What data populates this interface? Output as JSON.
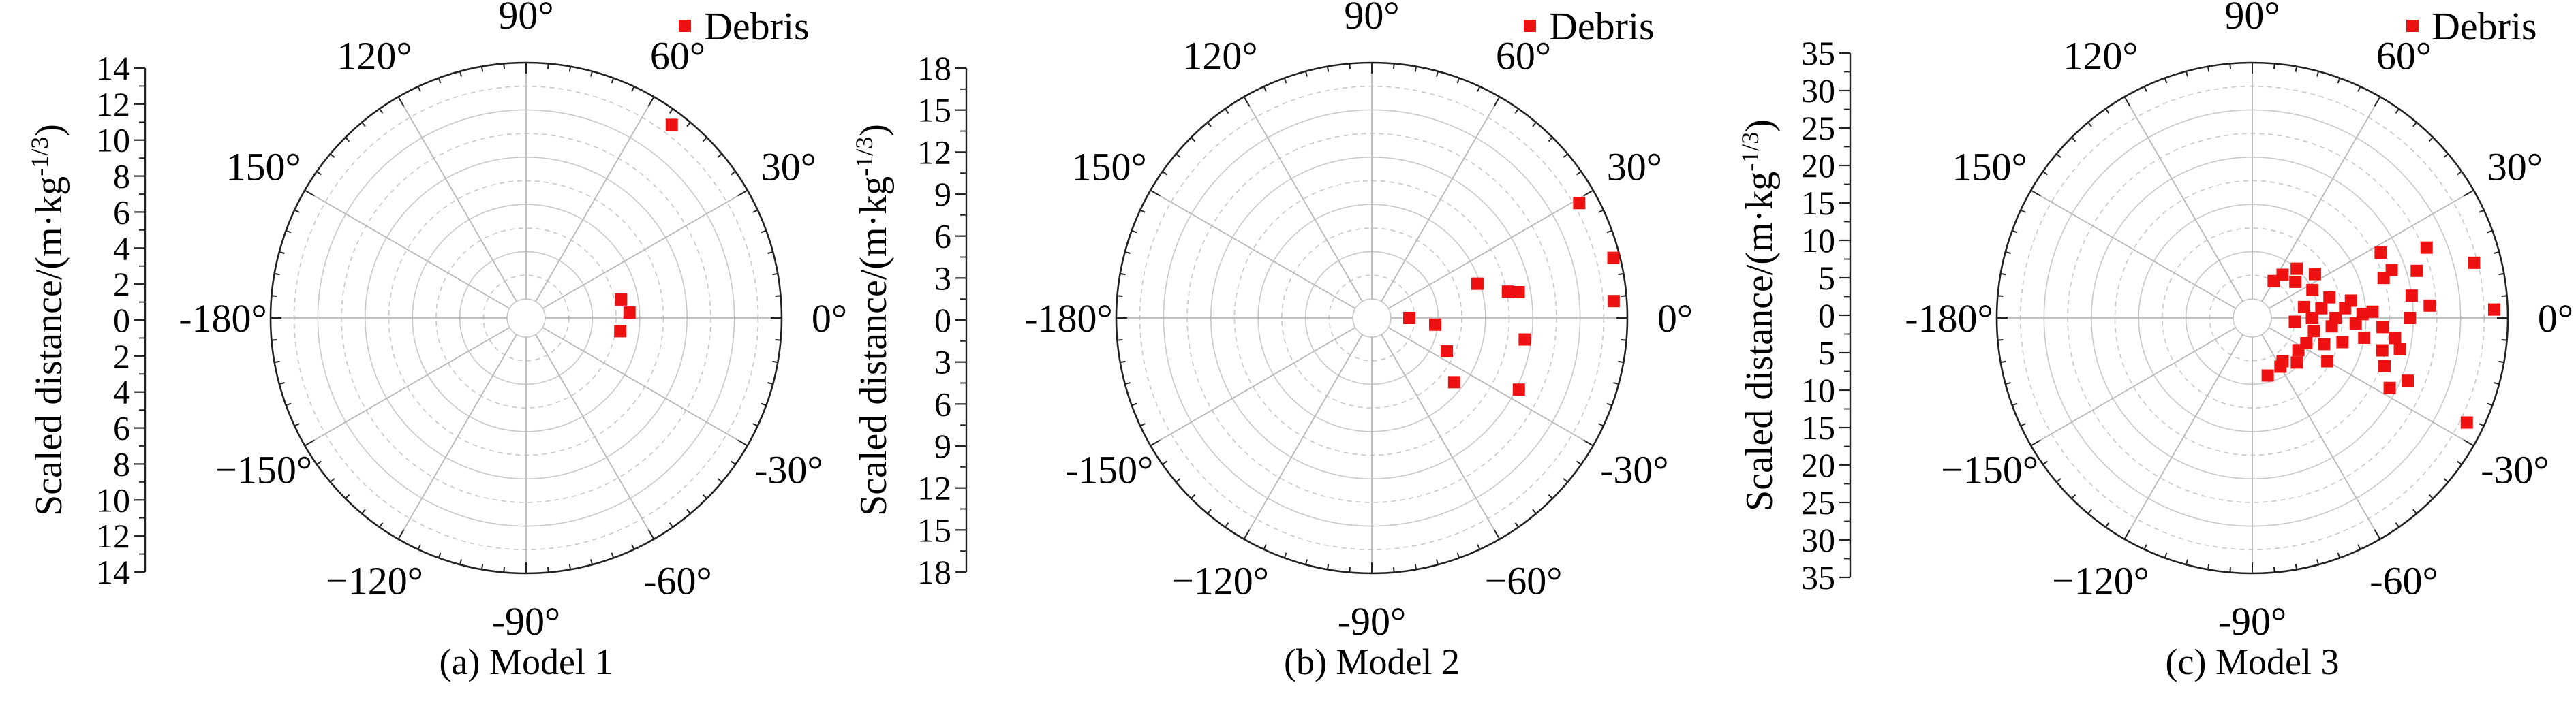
{
  "legend_label": "Debris",
  "series_color": "#ee1111",
  "chart_data": [
    {
      "type": "scatter",
      "projection": "polar",
      "caption": "(a) Model 1",
      "ylabel": "Scaled distance/(m·kg^{-1/3})",
      "angle_ticks": [
        "0°",
        "30°",
        "60°",
        "90°",
        "120°",
        "150°",
        "-180°",
        "−150°",
        "−120°",
        "-90°",
        "-60°",
        "-30°"
      ],
      "r_ticks": [
        "0",
        "2",
        "4",
        "6",
        "8",
        "10",
        "12",
        "14"
      ],
      "rlim": [
        0,
        14
      ],
      "grid": true,
      "legend_position": "top-right",
      "series": [
        {
          "name": "Debris",
          "points": [
            {
              "theta": 53,
              "r": 13.2
            },
            {
              "theta": 11,
              "r": 4.6
            },
            {
              "theta": 3,
              "r": 5.0
            },
            {
              "theta": -8,
              "r": 4.5
            }
          ]
        }
      ]
    },
    {
      "type": "scatter",
      "projection": "polar",
      "caption": "(b) Model 2",
      "ylabel": "Scaled distance/(m·kg^{-1/3})",
      "angle_ticks": [
        "0°",
        "30°",
        "60°",
        "90°",
        "120°",
        "150°",
        "-180°",
        "-150°",
        "−120°",
        "-90°",
        "−60°",
        "-30°"
      ],
      "r_ticks": [
        "0",
        "3",
        "6",
        "9",
        "12",
        "15",
        "18"
      ],
      "rlim": [
        0,
        18
      ],
      "grid": true,
      "legend_position": "top-right",
      "series": [
        {
          "name": "Debris",
          "points": [
            {
              "theta": 29,
              "r": 16.6
            },
            {
              "theta": 14,
              "r": 17.5
            },
            {
              "theta": 4,
              "r": 17.0
            },
            {
              "theta": 18,
              "r": 7.0
            },
            {
              "theta": 11,
              "r": 9.1
            },
            {
              "theta": 10,
              "r": 9.9
            },
            {
              "theta": -8,
              "r": 10.3
            },
            {
              "theta": -26,
              "r": 11.0
            },
            {
              "theta": -6,
              "r": 3.4
            },
            {
              "theta": -24,
              "r": 4.8
            },
            {
              "theta": -38,
              "r": 6.5
            },
            {
              "theta": 0,
              "r": 1.4
            }
          ]
        }
      ]
    },
    {
      "type": "scatter",
      "projection": "polar",
      "caption": "(c) Model 3",
      "ylabel": "Scaled distance/(m·kg^{-1/3})",
      "angle_ticks": [
        "0°",
        "30°",
        "60°",
        "90°",
        "120°",
        "150°",
        "-180°",
        "−150°",
        "−120°",
        "-90°",
        "-60°",
        "-30°"
      ],
      "r_ticks": [
        "0",
        "5",
        "10",
        "15",
        "20",
        "25",
        "30",
        "35"
      ],
      "rlim": [
        0,
        35
      ],
      "grid": true,
      "legend_position": "top-right",
      "series": [
        {
          "name": "Debris",
          "points": [
            {
              "theta": 2,
              "r": 33.0
            },
            {
              "theta": 14,
              "r": 31.0
            },
            {
              "theta": -26,
              "r": 32.5
            },
            {
              "theta": 22,
              "r": 25.0
            },
            {
              "theta": 27,
              "r": 18.5
            },
            {
              "theta": 16,
              "r": 22.5
            },
            {
              "theta": 19,
              "r": 19.0
            },
            {
              "theta": 17,
              "r": 17.5
            },
            {
              "theta": 8,
              "r": 21.0
            },
            {
              "theta": 4,
              "r": 23.5
            },
            {
              "theta": -22,
              "r": 22.0
            },
            {
              "theta": -27,
              "r": 20.0
            },
            {
              "theta": -20,
              "r": 18.0
            },
            {
              "theta": -14,
              "r": 17.0
            },
            {
              "theta": -10,
              "r": 14.0
            },
            {
              "theta": -4,
              "r": 16.5
            },
            {
              "theta": 2,
              "r": 13.5
            },
            {
              "theta": 6,
              "r": 11.0
            },
            {
              "theta": 3,
              "r": 15.0
            },
            {
              "theta": 0,
              "r": 20.5
            },
            {
              "theta": -3,
              "r": 12.5
            },
            {
              "theta": -8,
              "r": 18.5
            },
            {
              "theta": -12,
              "r": 19.5
            },
            {
              "theta": 35,
              "r": 8.5
            },
            {
              "theta": 48,
              "r": 7.0
            },
            {
              "theta": 55,
              "r": 5.0
            },
            {
              "theta": 60,
              "r": 3.5
            },
            {
              "theta": 40,
              "r": 5.5
            },
            {
              "theta": 25,
              "r": 7.0
            },
            {
              "theta": 12,
              "r": 5.0
            },
            {
              "theta": 8,
              "r": 7.5
            },
            {
              "theta": 15,
              "r": 9.0
            },
            {
              "theta": 0,
              "r": 6.0
            },
            {
              "theta": 0,
              "r": 9.5
            },
            {
              "theta": -5,
              "r": 3.5
            },
            {
              "theta": -12,
              "r": 6.5
            },
            {
              "theta": -20,
              "r": 8.5
            },
            {
              "theta": -25,
              "r": 6.0
            },
            {
              "theta": -30,
              "r": 10.0
            },
            {
              "theta": -35,
              "r": 5.5
            },
            {
              "theta": -45,
              "r": 6.5
            },
            {
              "theta": -55,
              "r": 5.0
            },
            {
              "theta": -60,
              "r": 5.5
            },
            {
              "theta": -75,
              "r": 6.0
            },
            {
              "theta": -15,
              "r": 11.0
            },
            {
              "theta": 10,
              "r": 12.0
            },
            {
              "theta": -6,
              "r": 9.0
            }
          ]
        }
      ]
    }
  ]
}
